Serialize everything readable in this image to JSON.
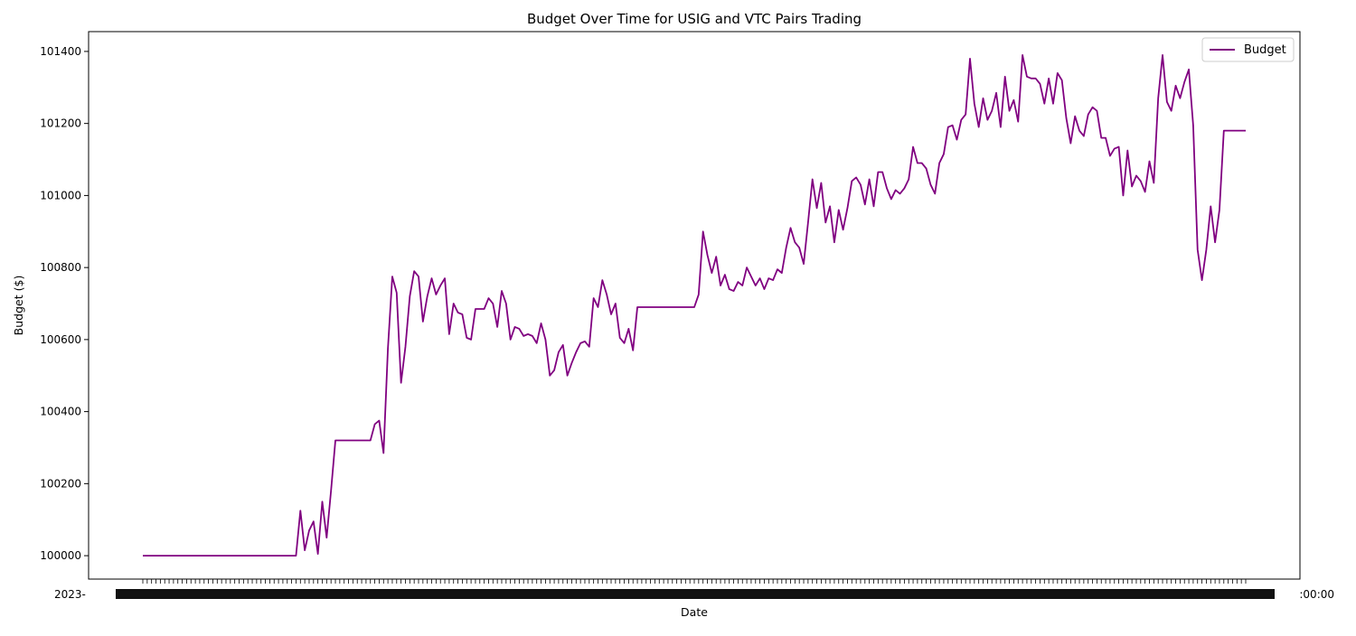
{
  "chart_data": {
    "type": "line",
    "title": "Budget Over Time for USIG and VTC Pairs Trading",
    "xlabel": "Date",
    "ylabel": "Budget ($)",
    "ylim": [
      99935,
      101455
    ],
    "yticks": [
      100000,
      100200,
      100400,
      100600,
      100800,
      101000,
      101200,
      101400
    ],
    "ytick_labels": [
      "100000",
      "100200",
      "100400",
      "100600",
      "100800",
      "101000",
      "101200",
      "101400"
    ],
    "grid": false,
    "legend": "top-right",
    "x_tick_label_left": "2023-",
    "x_tick_label_right": ":00:00",
    "series": [
      {
        "name": "Budget",
        "color": "#800080",
        "values": [
          100000,
          100000,
          100000,
          100000,
          100000,
          100000,
          100000,
          100000,
          100000,
          100000,
          100000,
          100000,
          100000,
          100000,
          100000,
          100000,
          100000,
          100000,
          100000,
          100000,
          100000,
          100000,
          100000,
          100000,
          100000,
          100000,
          100000,
          100000,
          100000,
          100000,
          100000,
          100000,
          100000,
          100000,
          100000,
          100000,
          100125,
          100015,
          100070,
          100095,
          100005,
          100150,
          100050,
          100180,
          100320,
          100320,
          100320,
          100320,
          100320,
          100320,
          100320,
          100320,
          100320,
          100365,
          100375,
          100285,
          100575,
          100775,
          100730,
          100480,
          100580,
          100720,
          100790,
          100775,
          100650,
          100720,
          100770,
          100725,
          100750,
          100770,
          100615,
          100700,
          100675,
          100670,
          100605,
          100600,
          100685,
          100685,
          100685,
          100715,
          100700,
          100635,
          100735,
          100700,
          100600,
          100635,
          100630,
          100610,
          100615,
          100610,
          100590,
          100645,
          100600,
          100500,
          100515,
          100565,
          100585,
          100500,
          100535,
          100565,
          100590,
          100595,
          100580,
          100715,
          100690,
          100765,
          100725,
          100670,
          100700,
          100605,
          100590,
          100630,
          100570,
          100690,
          100690,
          100690,
          100690,
          100690,
          100690,
          100690,
          100690,
          100690,
          100690,
          100690,
          100690,
          100690,
          100690,
          100725,
          100900,
          100835,
          100785,
          100830,
          100750,
          100780,
          100740,
          100735,
          100760,
          100750,
          100800,
          100775,
          100750,
          100770,
          100740,
          100770,
          100765,
          100795,
          100785,
          100855,
          100910,
          100870,
          100855,
          100810,
          100925,
          101045,
          100965,
          101035,
          100925,
          100970,
          100870,
          100960,
          100905,
          100965,
          101040,
          101050,
          101030,
          100975,
          101045,
          100970,
          101065,
          101065,
          101020,
          100990,
          101015,
          101005,
          101020,
          101045,
          101135,
          101090,
          101090,
          101075,
          101030,
          101005,
          101090,
          101115,
          101190,
          101195,
          101155,
          101210,
          101225,
          101380,
          101255,
          101190,
          101270,
          101210,
          101235,
          101285,
          101190,
          101330,
          101235,
          101265,
          101205,
          101390,
          101330,
          101325,
          101325,
          101310,
          101255,
          101325,
          101255,
          101340,
          101320,
          101215,
          101145,
          101220,
          101180,
          101165,
          101225,
          101245,
          101235,
          101160,
          101160,
          101110,
          101130,
          101135,
          101000,
          101125,
          101025,
          101055,
          101040,
          101010,
          101095,
          101035,
          101270,
          101390,
          101260,
          101235,
          101305,
          101270,
          101315,
          101350,
          101195,
          100850,
          100765,
          100850,
          100970,
          100870,
          100960,
          101180,
          101180,
          101180,
          101180,
          101180,
          101180
        ]
      }
    ]
  }
}
